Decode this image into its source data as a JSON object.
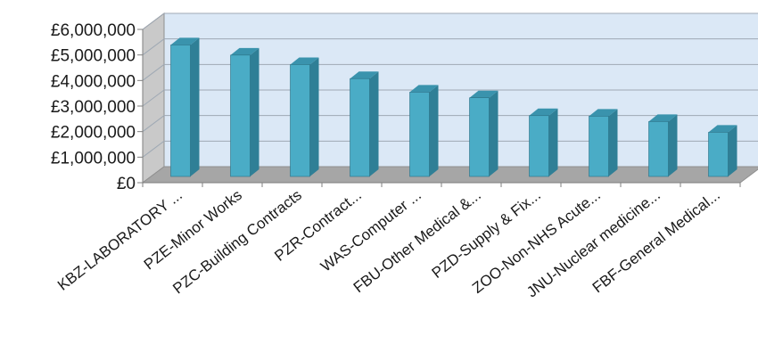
{
  "chart_data": {
    "type": "bar",
    "style": "3d-column",
    "title": "",
    "xlabel": "",
    "ylabel": "",
    "categories": [
      "KBZ-LABORATORY ...",
      "PZE-Minor Works",
      "PZC-Building Contracts",
      "PZR-Contract...",
      "WAS-Computer ...",
      "FBU-Other Medical &...",
      "PZD-Supply & Fix...",
      "ZOO-Non-NHS Acute...",
      "JNU-Nuclear medicine...",
      "FBF-General Medical..."
    ],
    "values": [
      5150000,
      4750000,
      4380000,
      3830000,
      3300000,
      3080000,
      2380000,
      2360000,
      2150000,
      1730000
    ],
    "ylim": [
      0,
      6000000
    ],
    "yticks": [
      "£0",
      "£1,000,000",
      "£2,000,000",
      "£3,000,000",
      "£4,000,000",
      "£5,000,000",
      "£6,000,000"
    ],
    "legend": "none",
    "grid": true,
    "colors": {
      "bar_front": "#4aacc6",
      "bar_side": "#2f7f96",
      "bar_top": "#3a93ad",
      "back_wall": "#dbe8f6",
      "floor": "#a6a6a6",
      "side_wall": "#c9c9c9",
      "grid": "#9fa9b4"
    }
  }
}
